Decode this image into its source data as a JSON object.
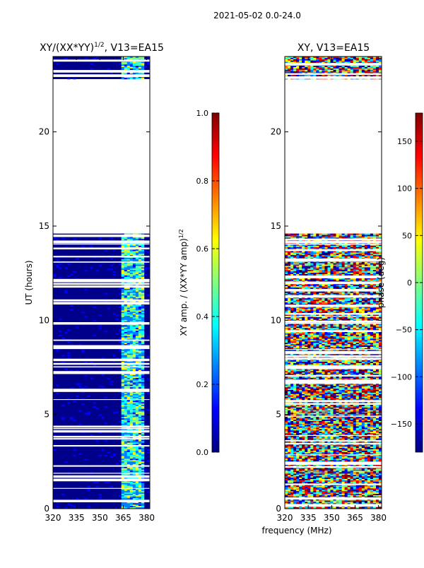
{
  "suptitle": "2021-05-02 0.0-24.0",
  "colors": {
    "background_fill": "#00008b",
    "jet": [
      "#00007f",
      "#0000ff",
      "#007fff",
      "#00ffff",
      "#7fff7f",
      "#ffff00",
      "#ff7f00",
      "#ff0000",
      "#7f0000"
    ]
  },
  "chart_data": [
    {
      "type": "heatmap",
      "title_main": "XY/(XX*YY)",
      "title_sup": "1/2",
      "title_rest": ", V13=EA15",
      "xlabel": "",
      "ylabel": "UT (hours)",
      "xlim": [
        320,
        382
      ],
      "ylim": [
        0,
        24
      ],
      "xticks": [
        320,
        335,
        350,
        365,
        380
      ],
      "yticks": [
        0,
        5,
        10,
        15,
        20
      ],
      "data_gap_hours": [
        14.6,
        22.8
      ],
      "colorbar": {
        "label_main": "XY amp. / (XX*YY amp)",
        "label_sup": "1/2",
        "range": [
          0.0,
          1.0
        ],
        "ticks": [
          "0.0",
          "0.2",
          "0.4",
          "0.6",
          "0.8",
          "1.0"
        ]
      }
    },
    {
      "type": "heatmap",
      "title": "XY, V13=EA15",
      "xlabel": "frequency (MHz)",
      "ylabel": "",
      "xlim": [
        320,
        382
      ],
      "ylim": [
        0,
        24
      ],
      "xticks": [
        320,
        335,
        350,
        365,
        380
      ],
      "yticks": [
        0,
        5,
        10,
        15,
        20
      ],
      "data_gap_hours": [
        14.6,
        22.8
      ],
      "colorbar": {
        "label": "phase (deg)",
        "range": [
          -180,
          180
        ],
        "ticks": [
          "150",
          "100",
          "50",
          "0",
          "−50",
          "−100",
          "−150"
        ]
      }
    }
  ]
}
